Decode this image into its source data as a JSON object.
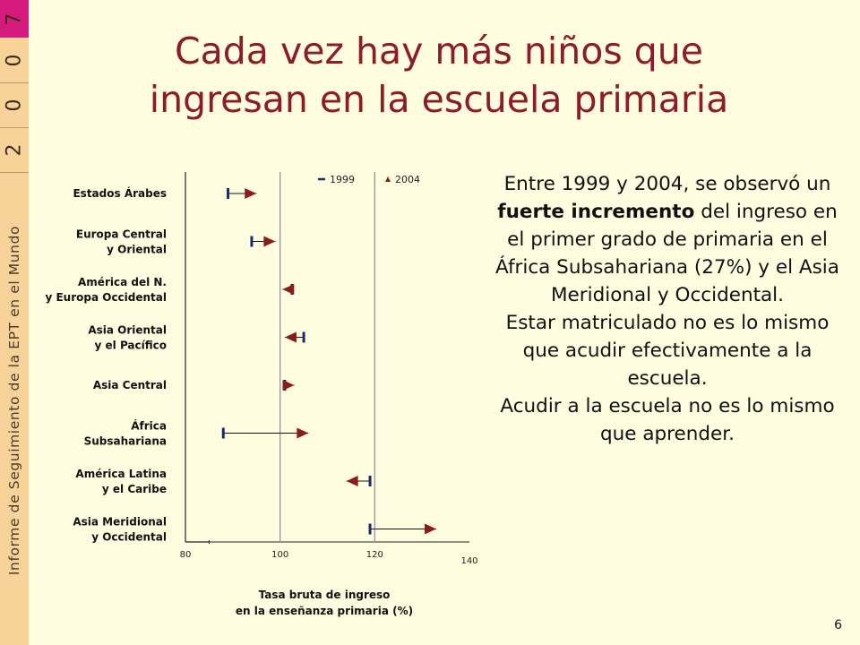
{
  "sidebar": {
    "digits": [
      "2",
      "0",
      "0",
      "7"
    ],
    "caption": "Informe de Seguimiento de la EPT en el Mundo"
  },
  "title": {
    "line1": "Cada vez hay más niños que",
    "line2": "ingresan en la escuela  primaria"
  },
  "chart_data": {
    "type": "scatter",
    "title": "",
    "xlabel_line1": "Tasa bruta de ingreso",
    "xlabel_line2": "en la enseñanza primaria (%)",
    "ylabel": "",
    "xlim": [
      80,
      140
    ],
    "x_ticks": [
      80,
      100,
      120,
      140
    ],
    "reference_lines": [
      100,
      120
    ],
    "legend": {
      "position": "top-right",
      "entries": [
        "1999",
        "2004"
      ]
    },
    "series": [
      {
        "name": "1999",
        "marker": "dash",
        "color": "#1a2a6c"
      },
      {
        "name": "2004",
        "marker": "triangle",
        "color": "#8a1c1c"
      }
    ],
    "categories": [
      {
        "lines": [
          "Estados Árabes"
        ],
        "v1999": 89,
        "v2004": 95
      },
      {
        "lines": [
          "Europa Central",
          "y Oriental"
        ],
        "v1999": 94,
        "v2004": 99
      },
      {
        "lines": [
          "América del N.",
          "y Europa Occidental"
        ],
        "v1999": 102.5,
        "v2004": 100.5
      },
      {
        "lines": [
          "Asia Oriental",
          "y el Pacífico"
        ],
        "v1999": 105,
        "v2004": 101
      },
      {
        "lines": [
          "Asia Central"
        ],
        "v1999": 101,
        "v2004": 103
      },
      {
        "lines": [
          "África",
          "Subsahariana"
        ],
        "v1999": 88,
        "v2004": 106
      },
      {
        "lines": [
          "América Latina",
          "y el Caribe"
        ],
        "v1999": 119,
        "v2004": 114
      },
      {
        "lines": [
          "Asia Meridional",
          "y Occidental"
        ],
        "v1999": 119,
        "v2004": 133
      }
    ]
  },
  "text_panel": {
    "p1_before": "Entre 1999 y 2004, se observó un ",
    "p1_bold": "fuerte incremento",
    "p1_after": " del ingreso en el primer grado de primaria en el  África Subsahariana (27%) y el Asia Meridional y Occidental.",
    "p2": "Estar matriculado no es lo mismo que acudir efectivamente a la escuela.",
    "p3": "Acudir a la escuela no es lo mismo que aprender."
  },
  "page_number": "6",
  "colors": {
    "title": "#8c1c2c",
    "series_1999": "#1a2a6c",
    "series_2004": "#8a1c1c",
    "sidebar_accent": "#d6197d",
    "sidebar_bg": "#f7d39a",
    "background": "#fffde0"
  }
}
